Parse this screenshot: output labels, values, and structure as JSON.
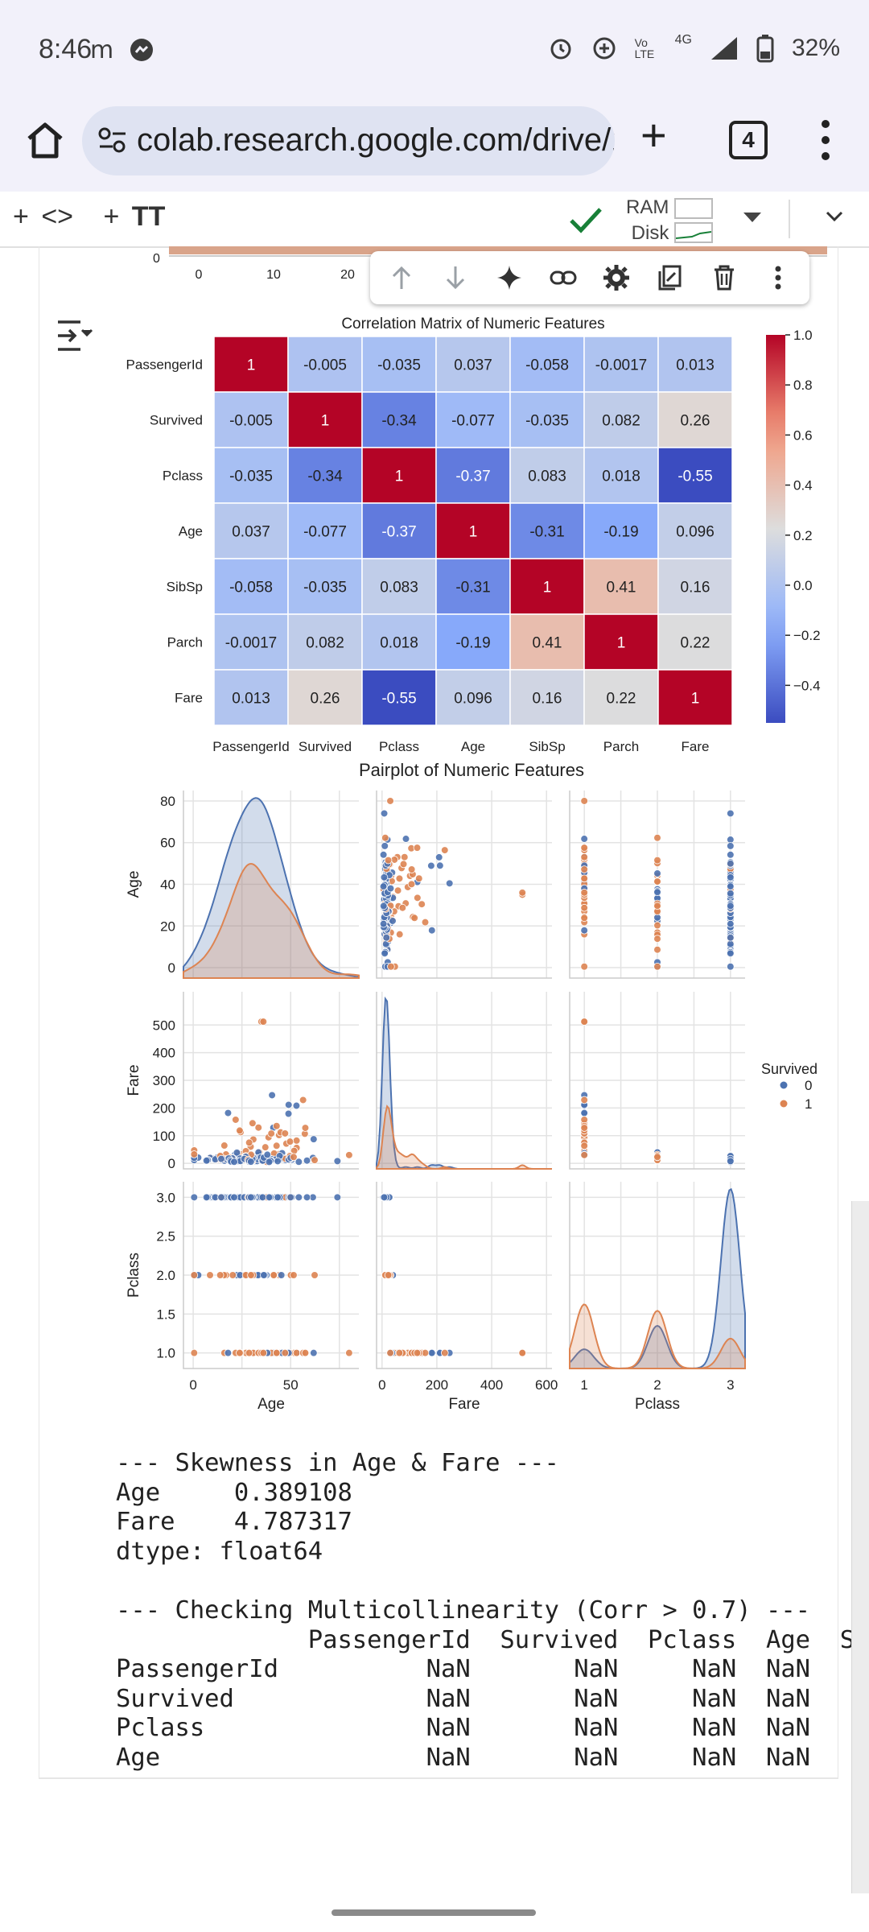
{
  "status": {
    "time": "8:46",
    "battery": "32%",
    "network": "4G",
    "volte": "Vo LTE"
  },
  "browser": {
    "url": "colab.research.google.com/drive/1IM3",
    "tab_count": "4"
  },
  "colab": {
    "toolbar_left": [
      "+",
      "<>",
      "+",
      "TT"
    ],
    "ram_label": "RAM",
    "disk_label": "Disk"
  },
  "cell_toolbar": [
    "up-arrow-icon",
    "down-arrow-icon",
    "gemini-sparkle-icon",
    "link-icon",
    "gear-icon",
    "mirror-cell-icon",
    "delete-icon",
    "more-vert-icon"
  ],
  "residual_axis": {
    "labels": [
      "0",
      "10",
      "20"
    ]
  },
  "chart_data": [
    {
      "type": "heatmap",
      "title": "Correlation Matrix of Numeric Features",
      "labels": [
        "PassengerId",
        "Survived",
        "Pclass",
        "Age",
        "SibSp",
        "Parch",
        "Fare"
      ],
      "cell_text": [
        [
          "1",
          "-0.005",
          "-0.035",
          "0.037",
          "-0.058",
          "-0.0017",
          "0.013"
        ],
        [
          "-0.005",
          "1",
          "-0.34",
          "-0.077",
          "-0.035",
          "0.082",
          "0.26"
        ],
        [
          "-0.035",
          "-0.34",
          "1",
          "-0.37",
          "0.083",
          "0.018",
          "-0.55"
        ],
        [
          "0.037",
          "-0.077",
          "-0.37",
          "1",
          "-0.31",
          "-0.19",
          "0.096"
        ],
        [
          "-0.058",
          "-0.035",
          "0.083",
          "-0.31",
          "1",
          "0.41",
          "0.16"
        ],
        [
          "-0.0017",
          "0.082",
          "0.018",
          "-0.19",
          "0.41",
          "1",
          "0.22"
        ],
        [
          "0.013",
          "0.26",
          "-0.55",
          "0.096",
          "0.16",
          "0.22",
          "1"
        ]
      ],
      "colorbar": {
        "ticks": [
          "1.0",
          "0.8",
          "0.6",
          "0.4",
          "0.2",
          "0.0",
          "−0.2",
          "−0.4"
        ],
        "range": [
          -0.55,
          1.0
        ],
        "colormap": "coolwarm"
      }
    },
    {
      "type": "scatter",
      "title": "Pairplot of Numeric Features",
      "variables": [
        "Age",
        "Fare",
        "Pclass"
      ],
      "hue": {
        "title": "Survived",
        "levels": [
          "0",
          "1"
        ],
        "colors": [
          "#4c72b0",
          "#dd8452"
        ]
      },
      "axis_ticks": {
        "Age_y": [
          "80",
          "60",
          "40",
          "20",
          "0"
        ],
        "Fare_y": [
          "500",
          "400",
          "300",
          "200",
          "100",
          "0"
        ],
        "Pclass_y": [
          "3.0",
          "2.5",
          "2.0",
          "1.5",
          "1.0"
        ],
        "Age_x": [
          "0",
          "50"
        ],
        "Fare_x": [
          "0",
          "200",
          "400",
          "600"
        ],
        "Pclass_x": [
          "1",
          "2",
          "3"
        ]
      },
      "ranges": {
        "Age": [
          -5,
          85
        ],
        "Fare": [
          -20,
          620
        ],
        "Pclass": [
          0.8,
          3.2
        ]
      }
    }
  ],
  "output_text": [
    "--- Skewness in Age & Fare ---",
    "Age     0.389108",
    "Fare    4.787317",
    "dtype: float64",
    "",
    "--- Checking Multicollinearity (Corr > 0.7) ---",
    "             PassengerId  Survived  Pclass  Age  S",
    "PassengerId          NaN       NaN     NaN  NaN",
    "Survived             NaN       NaN     NaN  NaN",
    "Pclass               NaN       NaN     NaN  NaN",
    "Age                  NaN       NaN     NaN  NaN"
  ]
}
